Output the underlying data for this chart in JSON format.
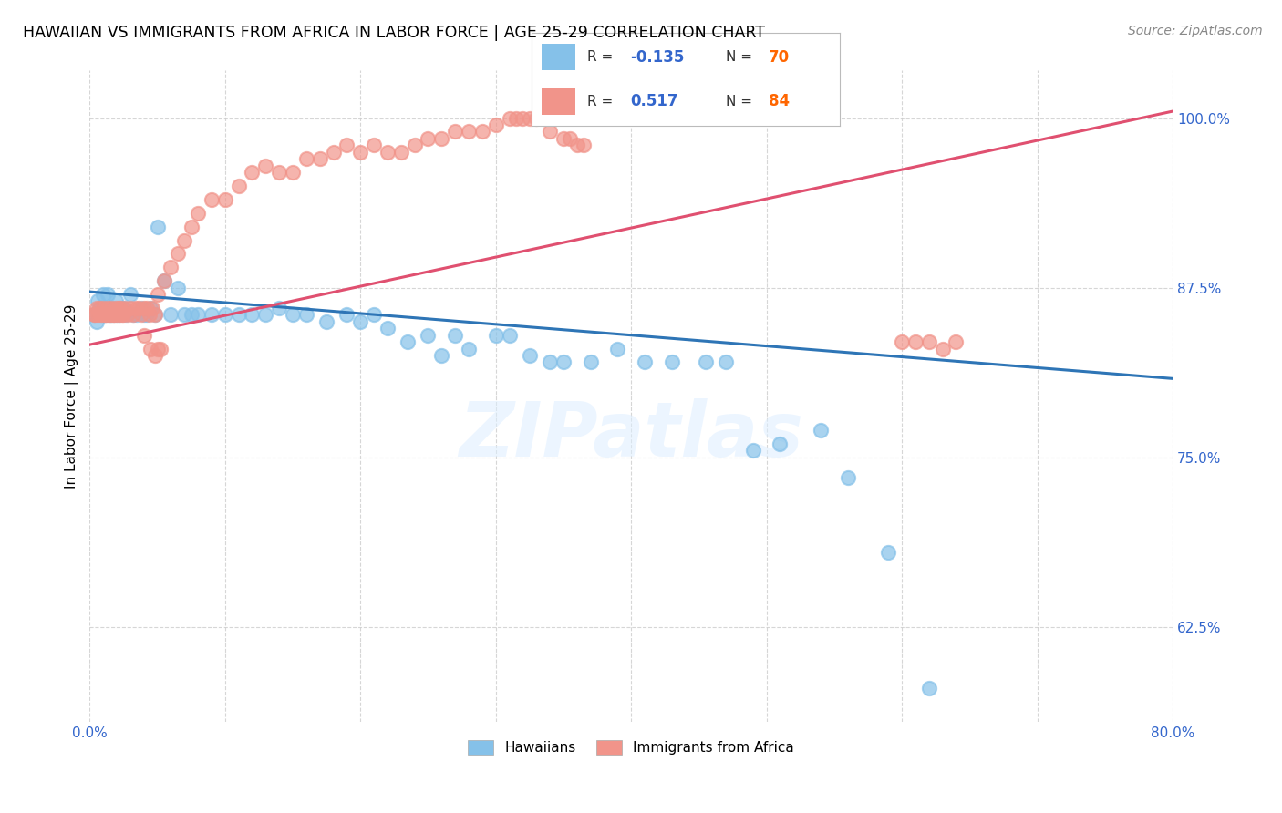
{
  "title": "HAWAIIAN VS IMMIGRANTS FROM AFRICA IN LABOR FORCE | AGE 25-29 CORRELATION CHART",
  "source": "Source: ZipAtlas.com",
  "ylabel": "In Labor Force | Age 25-29",
  "xlim": [
    0.0,
    0.8
  ],
  "ylim": [
    0.555,
    1.035
  ],
  "xticks": [
    0.0,
    0.1,
    0.2,
    0.3,
    0.4,
    0.5,
    0.6,
    0.7,
    0.8
  ],
  "xticklabels": [
    "0.0%",
    "",
    "",
    "",
    "",
    "",
    "",
    "",
    "80.0%"
  ],
  "ytick_positions": [
    0.625,
    0.75,
    0.875,
    1.0
  ],
  "ytick_labels": [
    "62.5%",
    "75.0%",
    "87.5%",
    "100.0%"
  ],
  "hawaii_color": "#85C1E9",
  "africa_color": "#F1948A",
  "hawaii_R": -0.135,
  "hawaii_N": 70,
  "africa_R": 0.517,
  "africa_N": 84,
  "hawaii_line_color": "#2E75B6",
  "africa_line_color": "#E05070",
  "legend_R_color": "#3366CC",
  "legend_N_color": "#FF6600",
  "watermark": "ZIPatlas",
  "hawaii_x": [
    0.003,
    0.005,
    0.006,
    0.008,
    0.009,
    0.01,
    0.011,
    0.012,
    0.013,
    0.014,
    0.015,
    0.016,
    0.017,
    0.018,
    0.019,
    0.02,
    0.022,
    0.024,
    0.025,
    0.027,
    0.03,
    0.032,
    0.035,
    0.038,
    0.04,
    0.042,
    0.045,
    0.048,
    0.05,
    0.055,
    0.06,
    0.065,
    0.07,
    0.075,
    0.08,
    0.09,
    0.1,
    0.11,
    0.12,
    0.13,
    0.14,
    0.15,
    0.16,
    0.175,
    0.19,
    0.2,
    0.21,
    0.22,
    0.235,
    0.25,
    0.26,
    0.27,
    0.28,
    0.3,
    0.31,
    0.325,
    0.34,
    0.35,
    0.37,
    0.39,
    0.41,
    0.43,
    0.455,
    0.47,
    0.49,
    0.51,
    0.54,
    0.56,
    0.59,
    0.62
  ],
  "hawaii_y": [
    0.855,
    0.85,
    0.865,
    0.86,
    0.855,
    0.87,
    0.855,
    0.855,
    0.87,
    0.855,
    0.855,
    0.855,
    0.86,
    0.855,
    0.865,
    0.855,
    0.855,
    0.86,
    0.86,
    0.855,
    0.87,
    0.855,
    0.855,
    0.86,
    0.855,
    0.855,
    0.86,
    0.855,
    0.92,
    0.88,
    0.855,
    0.875,
    0.855,
    0.855,
    0.855,
    0.855,
    0.855,
    0.855,
    0.855,
    0.855,
    0.86,
    0.855,
    0.855,
    0.85,
    0.855,
    0.85,
    0.855,
    0.845,
    0.835,
    0.84,
    0.825,
    0.84,
    0.83,
    0.84,
    0.84,
    0.825,
    0.82,
    0.82,
    0.82,
    0.83,
    0.82,
    0.82,
    0.82,
    0.82,
    0.755,
    0.76,
    0.77,
    0.735,
    0.68,
    0.58
  ],
  "africa_x": [
    0.003,
    0.004,
    0.005,
    0.006,
    0.007,
    0.008,
    0.009,
    0.01,
    0.011,
    0.012,
    0.013,
    0.014,
    0.015,
    0.016,
    0.017,
    0.018,
    0.019,
    0.02,
    0.021,
    0.022,
    0.023,
    0.024,
    0.025,
    0.026,
    0.028,
    0.03,
    0.032,
    0.034,
    0.036,
    0.038,
    0.04,
    0.042,
    0.044,
    0.046,
    0.048,
    0.05,
    0.055,
    0.06,
    0.065,
    0.07,
    0.075,
    0.08,
    0.09,
    0.1,
    0.11,
    0.12,
    0.13,
    0.14,
    0.15,
    0.16,
    0.17,
    0.18,
    0.19,
    0.2,
    0.21,
    0.22,
    0.23,
    0.24,
    0.25,
    0.26,
    0.27,
    0.28,
    0.29,
    0.3,
    0.31,
    0.315,
    0.32,
    0.325,
    0.33,
    0.34,
    0.35,
    0.355,
    0.36,
    0.365,
    0.04,
    0.045,
    0.048,
    0.05,
    0.052,
    0.6,
    0.61,
    0.62,
    0.63,
    0.64
  ],
  "africa_y": [
    0.855,
    0.855,
    0.86,
    0.855,
    0.86,
    0.855,
    0.855,
    0.86,
    0.855,
    0.855,
    0.86,
    0.855,
    0.855,
    0.86,
    0.855,
    0.855,
    0.86,
    0.855,
    0.86,
    0.855,
    0.86,
    0.855,
    0.855,
    0.86,
    0.855,
    0.86,
    0.855,
    0.86,
    0.86,
    0.855,
    0.86,
    0.86,
    0.855,
    0.86,
    0.855,
    0.87,
    0.88,
    0.89,
    0.9,
    0.91,
    0.92,
    0.93,
    0.94,
    0.94,
    0.95,
    0.96,
    0.965,
    0.96,
    0.96,
    0.97,
    0.97,
    0.975,
    0.98,
    0.975,
    0.98,
    0.975,
    0.975,
    0.98,
    0.985,
    0.985,
    0.99,
    0.99,
    0.99,
    0.995,
    1.0,
    1.0,
    1.0,
    1.0,
    1.0,
    0.99,
    0.985,
    0.985,
    0.98,
    0.98,
    0.84,
    0.83,
    0.825,
    0.83,
    0.83,
    0.835,
    0.835,
    0.835,
    0.83,
    0.835
  ],
  "hawaii_line_y0": 0.872,
  "hawaii_line_y1": 0.808,
  "africa_line_y0": 0.833,
  "africa_line_y1": 1.005
}
